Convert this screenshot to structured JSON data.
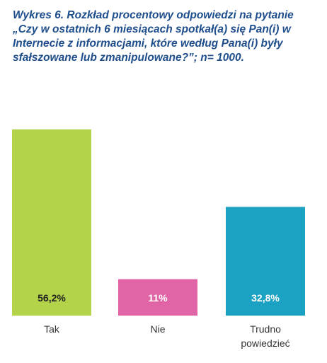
{
  "chart_data": {
    "type": "bar",
    "title": "Wykres 6. Rozkład procentowy odpowiedzi na pytanie „Czy w ostatnich 6 miesiącach spotkał(a) się Pan(i) w Internecie z informacjami, które według Pana(i) były sfałszowane lub zmanipulowane?”; n= 1000.",
    "categories": [
      [
        "Tak"
      ],
      [
        "Nie"
      ],
      [
        "Trudno",
        "powiedzieć"
      ]
    ],
    "values": [
      56.2,
      11,
      32.8
    ],
    "value_labels": [
      "56,2%",
      "11%",
      "32,8%"
    ],
    "colors": [
      "#b3d34b",
      "#e165a6",
      "#1ba1c1"
    ],
    "value_label_colors": [
      "#222222",
      "#ffffff",
      "#ffffff"
    ],
    "ylim": [
      0,
      60
    ],
    "grid": false,
    "legend": false,
    "xlabel": "",
    "ylabel": ""
  }
}
